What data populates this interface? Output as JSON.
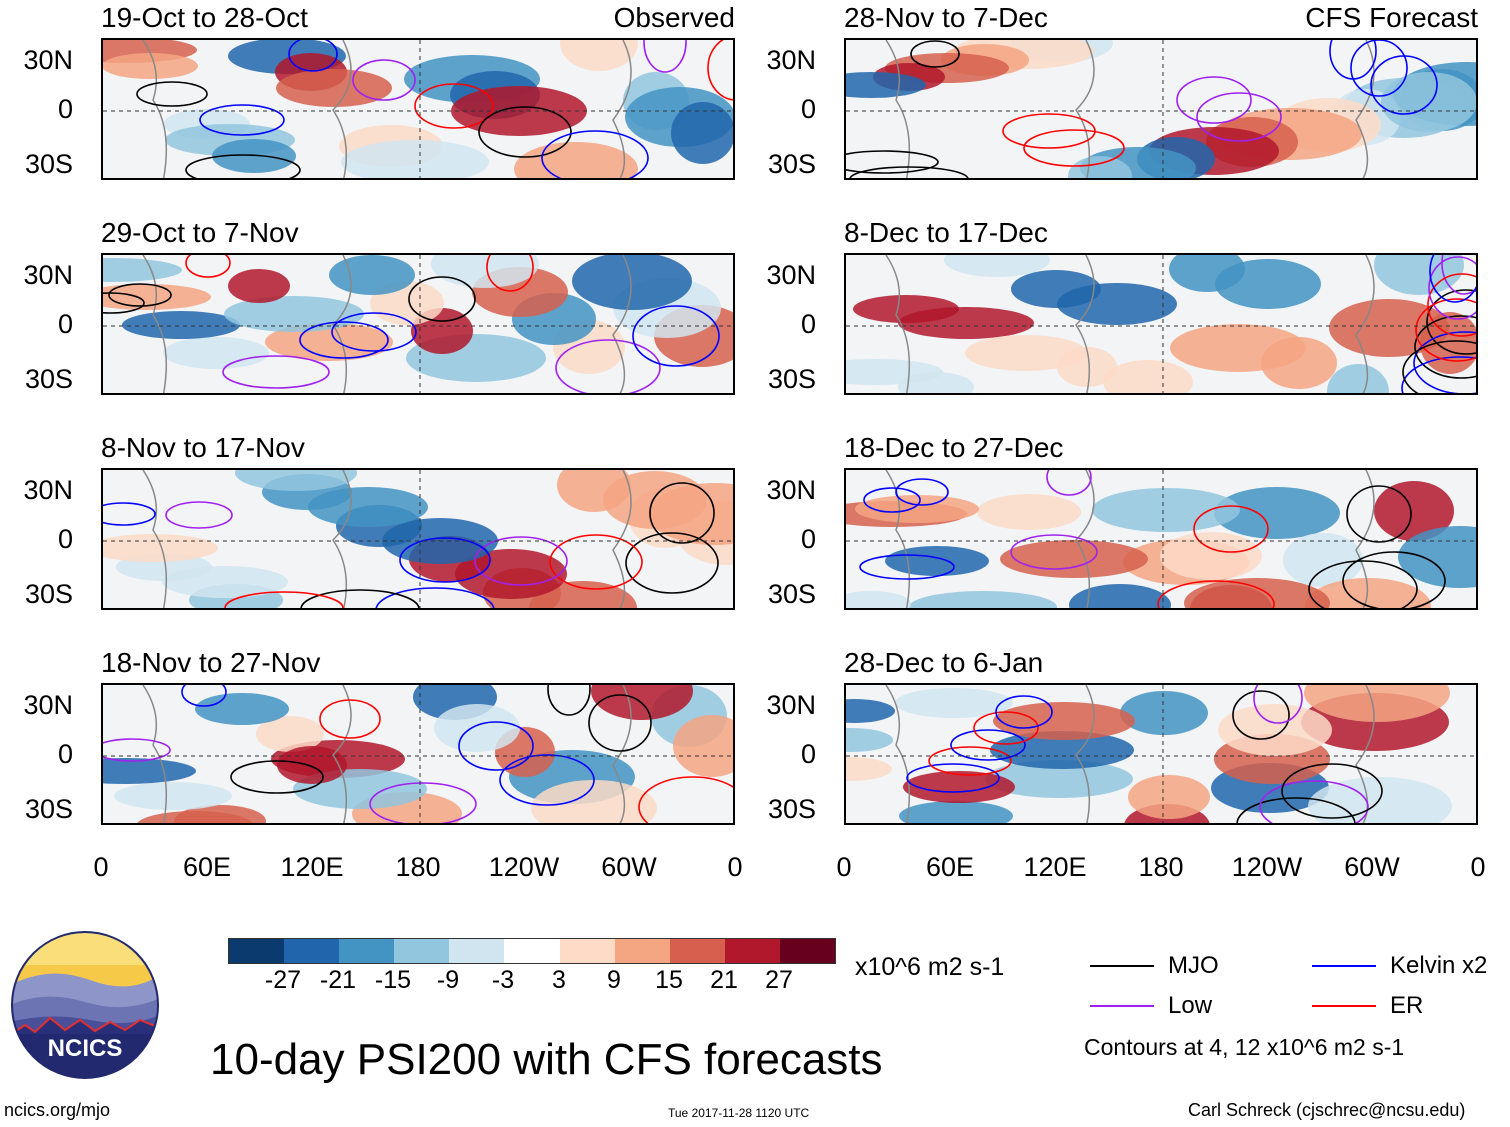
{
  "panels": [
    {
      "title": "19-Oct to 28-Oct",
      "tag": "Observed"
    },
    {
      "title": "28-Nov to 7-Dec",
      "tag": "CFS Forecast"
    },
    {
      "title": "29-Oct to 7-Nov",
      "tag": ""
    },
    {
      "title": "8-Dec to 17-Dec",
      "tag": ""
    },
    {
      "title": "8-Nov to 17-Nov",
      "tag": ""
    },
    {
      "title": "18-Dec to 27-Dec",
      "tag": ""
    },
    {
      "title": "18-Nov to 27-Nov",
      "tag": ""
    },
    {
      "title": "28-Dec to 6-Jan",
      "tag": ""
    }
  ],
  "lat_labels": [
    "30N",
    "0",
    "30S"
  ],
  "lon_labels": [
    "0",
    "60E",
    "120E",
    "180",
    "120W",
    "60W",
    "0"
  ],
  "colorbar": {
    "colors": [
      "#0b3a6e",
      "#2166ac",
      "#4393c3",
      "#92c5de",
      "#d1e5f0",
      "#ffffff",
      "#fddbc7",
      "#f4a582",
      "#d6604d",
      "#b2182b",
      "#67001f"
    ],
    "ticks": [
      "-27",
      "-21",
      "-15",
      "-9",
      "-3",
      "3",
      "9",
      "15",
      "21",
      "27"
    ],
    "units": "x10^6 m2 s-1"
  },
  "legend": {
    "items": [
      {
        "label": "MJO",
        "color": "#000000"
      },
      {
        "label": "Kelvin x2",
        "color": "#0000ff"
      },
      {
        "label": "Low",
        "color": "#a020f0"
      },
      {
        "label": "ER",
        "color": "#ff0000"
      }
    ],
    "contours_note": "Contours at 4, 12 x10^6 m2 s-1"
  },
  "main_title": "10-day PSI200 with CFS forecasts",
  "logo_text": "NCICS",
  "footer": {
    "left": "ncics.org/mjo",
    "center": "Tue 2017-11-28 1120 UTC",
    "right": "Carl Schreck (cjschrec@ncsu.edu)"
  }
}
